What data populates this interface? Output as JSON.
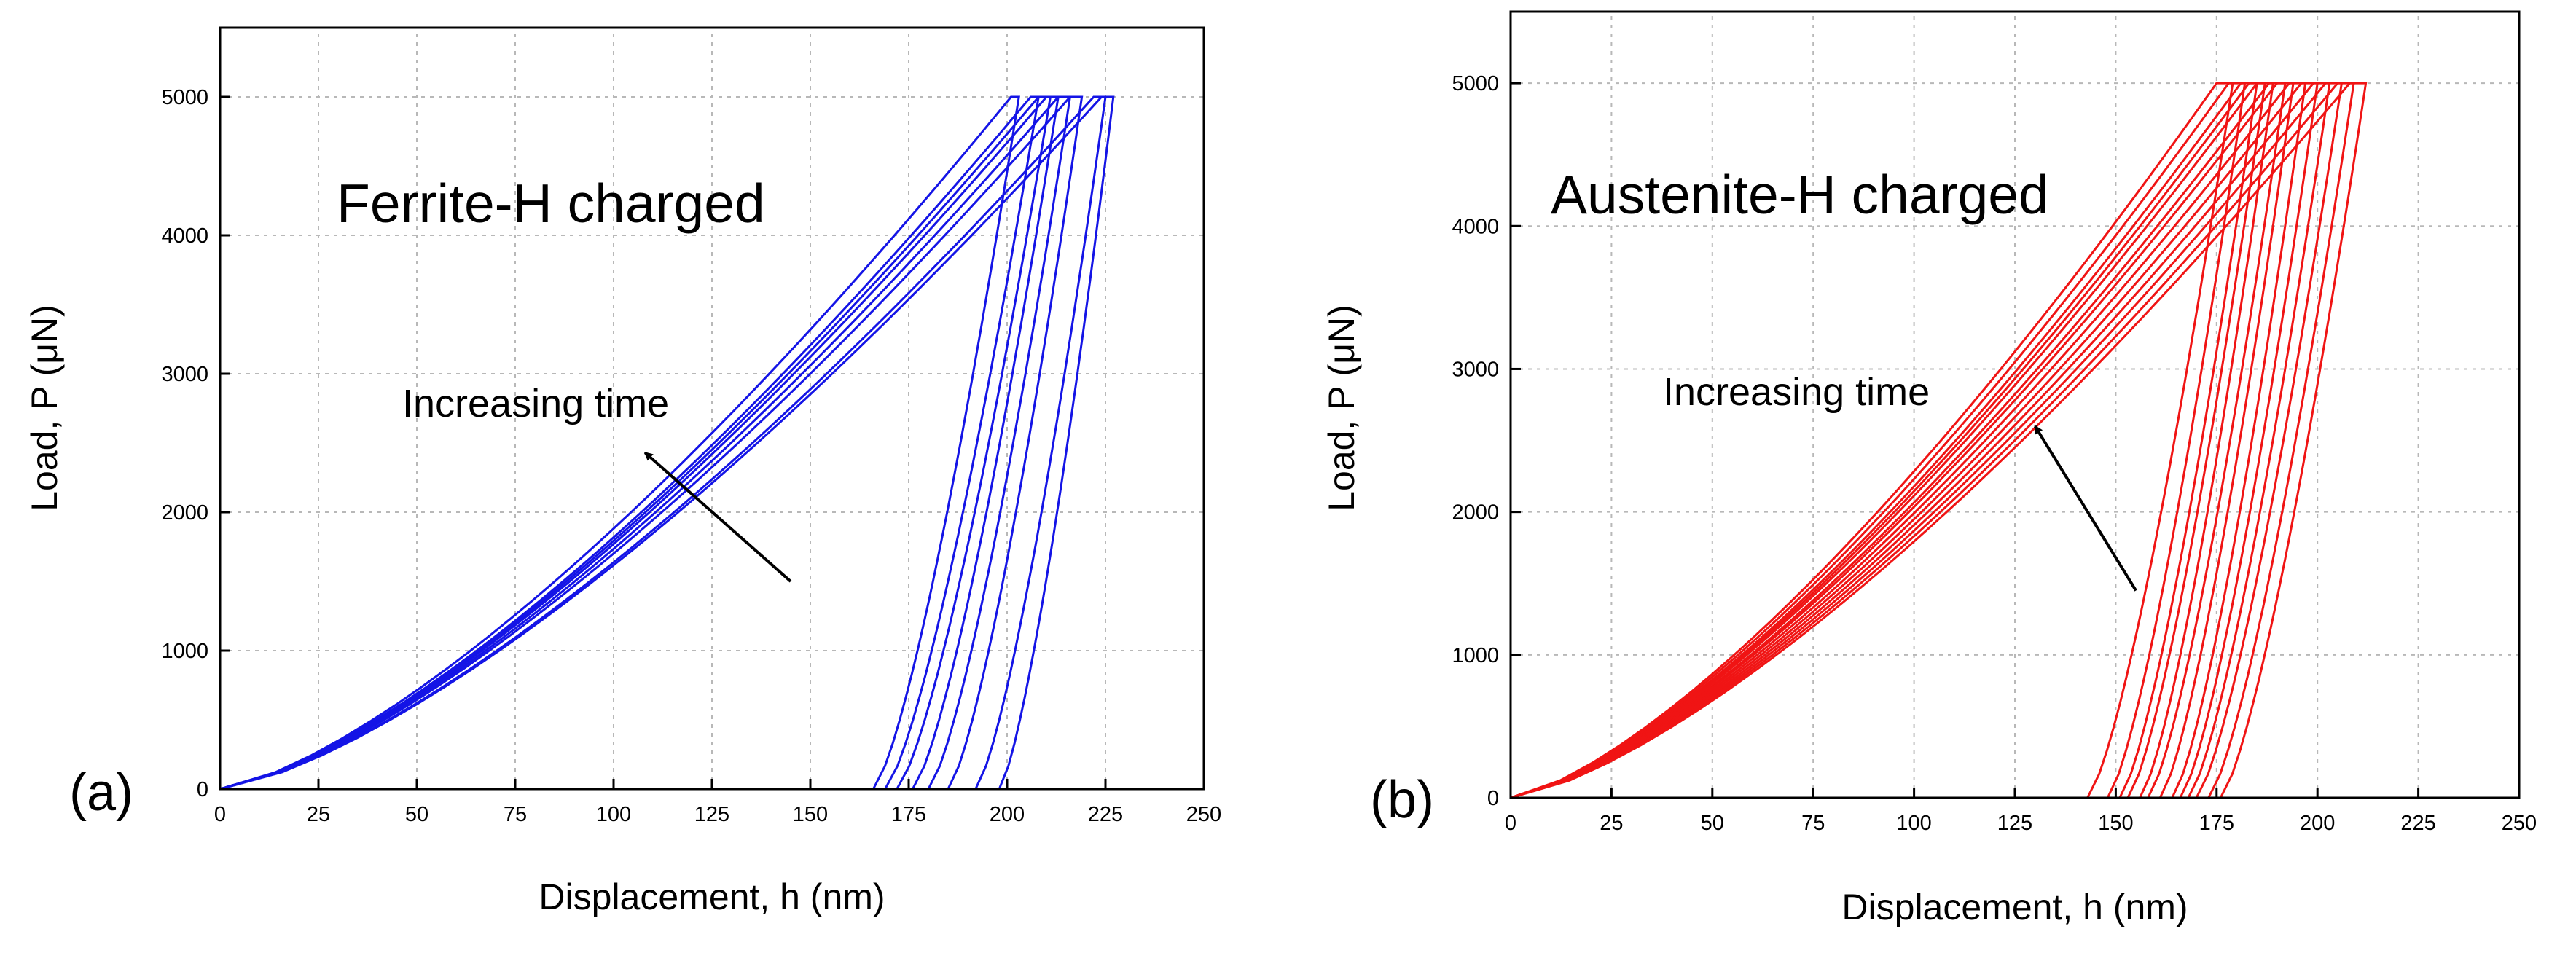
{
  "figure": {
    "left_panel_label": "(a)",
    "right_panel_label": "(b)"
  },
  "colors": {
    "ferrite": "#1414e6",
    "austenite": "#f01414",
    "grid": "#b8b8b8"
  },
  "chart_data": [
    {
      "type": "line",
      "panel": "(a)",
      "title": "Ferrite-H charged",
      "annotation": "Increasing time",
      "xlabel": "Displacement, h (nm)",
      "ylabel": "Load, P (μN)",
      "xlim": [
        0,
        250
      ],
      "ylim": [
        0,
        5500
      ],
      "xticks": [
        0,
        25,
        50,
        75,
        100,
        125,
        150,
        175,
        200,
        225,
        250
      ],
      "yticks": [
        0,
        1000,
        2000,
        3000,
        4000,
        5000
      ],
      "grid": true,
      "arrow": {
        "from": [
          145,
          1500
        ],
        "to": [
          108,
          2430
        ]
      },
      "series": [
        {
          "name": "curve 1",
          "hmax": 201,
          "hmax_hold": 203,
          "hf": 166
        },
        {
          "name": "curve 2",
          "hmax": 206,
          "hmax_hold": 208,
          "hf": 169
        },
        {
          "name": "curve 3",
          "hmax": 208,
          "hmax_hold": 211,
          "hf": 172
        },
        {
          "name": "curve 4",
          "hmax": 210,
          "hmax_hold": 213,
          "hf": 176
        },
        {
          "name": "curve 5",
          "hmax": 213,
          "hmax_hold": 216,
          "hf": 180
        },
        {
          "name": "curve 6",
          "hmax": 216,
          "hmax_hold": 219,
          "hf": 185
        },
        {
          "name": "curve 7",
          "hmax": 222,
          "hmax_hold": 225,
          "hf": 192
        },
        {
          "name": "curve 8",
          "hmax": 224,
          "hmax_hold": 227,
          "hf": 198
        }
      ]
    },
    {
      "type": "line",
      "panel": "(b)",
      "title": "Austenite-H charged",
      "annotation": "Increasing time",
      "xlabel": "Displacement, h (nm)",
      "ylabel": "Load, P (μN)",
      "xlim": [
        0,
        250
      ],
      "ylim": [
        0,
        5500
      ],
      "xticks": [
        0,
        25,
        50,
        75,
        100,
        125,
        150,
        175,
        200,
        225,
        250
      ],
      "yticks": [
        0,
        1000,
        2000,
        3000,
        4000,
        5000
      ],
      "grid": true,
      "arrow": {
        "from": [
          155,
          1450
        ],
        "to": [
          130,
          2600
        ]
      },
      "series": [
        {
          "name": "curve 1",
          "hmax": 175,
          "hmax_hold": 179,
          "hf": 143
        },
        {
          "name": "curve 2",
          "hmax": 178,
          "hmax_hold": 182,
          "hf": 148
        },
        {
          "name": "curve 3",
          "hmax": 181,
          "hmax_hold": 185,
          "hf": 151
        },
        {
          "name": "curve 4",
          "hmax": 183,
          "hmax_hold": 187,
          "hf": 153
        },
        {
          "name": "curve 5",
          "hmax": 185,
          "hmax_hold": 189,
          "hf": 156
        },
        {
          "name": "curve 6",
          "hmax": 188,
          "hmax_hold": 192,
          "hf": 158
        },
        {
          "name": "curve 7",
          "hmax": 190,
          "hmax_hold": 194,
          "hf": 161
        },
        {
          "name": "curve 8",
          "hmax": 193,
          "hmax_hold": 197,
          "hf": 164
        },
        {
          "name": "curve 9",
          "hmax": 196,
          "hmax_hold": 200,
          "hf": 166
        },
        {
          "name": "curve 10",
          "hmax": 199,
          "hmax_hold": 203,
          "hf": 168
        },
        {
          "name": "curve 11",
          "hmax": 202,
          "hmax_hold": 206,
          "hf": 170
        },
        {
          "name": "curve 12",
          "hmax": 205,
          "hmax_hold": 209,
          "hf": 173
        },
        {
          "name": "curve 13",
          "hmax": 208,
          "hmax_hold": 212,
          "hf": 176
        }
      ]
    }
  ]
}
